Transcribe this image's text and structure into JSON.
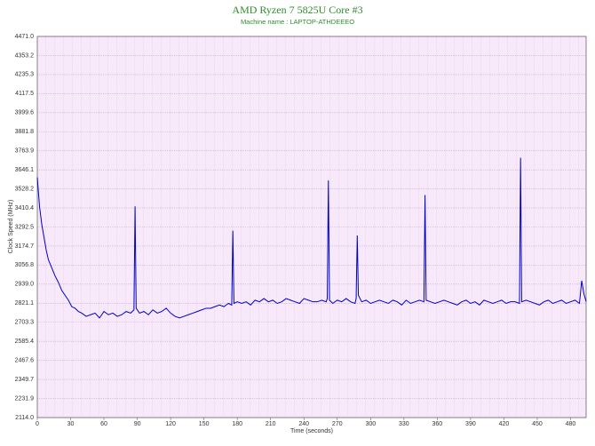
{
  "chart_data": {
    "type": "line",
    "title": "AMD Ryzen 7 5825U Core #3",
    "subtitle": "Machine name : LAPTOP-ATHDEEEO",
    "x_label": "Time (seconds)",
    "y_label": "Clock Speed (MHz)",
    "color": "#0000cc",
    "grid": true,
    "xlim": [
      0,
      494
    ],
    "xticks": [
      0,
      30,
      60,
      90,
      120,
      150,
      180,
      210,
      240,
      270,
      300,
      330,
      360,
      390,
      420,
      450,
      480
    ],
    "ylim": [
      2114,
      4471
    ],
    "yticks": [
      {
        "value": 2114,
        "label": "2114.0"
      },
      2231.9,
      2349.7,
      2467.6,
      2585.4,
      2703.3,
      2821.1,
      {
        "value": 2939,
        "label": "2939.0"
      },
      3056.8,
      3174.7,
      3292.5,
      3410.4,
      3528.2,
      3646.1,
      3763.9,
      3881.8,
      3999.6,
      4117.5,
      4235.3,
      4353.2,
      {
        "value": 4471,
        "label": "4471.0"
      }
    ],
    "x": [
      0,
      2,
      4,
      6,
      8,
      10,
      13,
      16,
      19,
      22,
      25,
      28,
      31,
      34,
      37,
      40,
      44,
      48,
      52,
      56,
      60,
      64,
      68,
      72,
      76,
      80,
      84,
      87,
      88,
      89,
      92,
      96,
      100,
      104,
      108,
      112,
      116,
      120,
      124,
      128,
      132,
      136,
      140,
      144,
      148,
      152,
      156,
      160,
      164,
      168,
      172,
      175,
      176,
      177,
      180,
      184,
      188,
      192,
      196,
      200,
      204,
      208,
      212,
      216,
      220,
      224,
      228,
      232,
      236,
      240,
      244,
      248,
      252,
      256,
      260,
      261,
      262,
      263,
      266,
      270,
      274,
      278,
      282,
      286,
      287,
      288,
      289,
      292,
      296,
      300,
      304,
      308,
      312,
      316,
      320,
      324,
      328,
      332,
      336,
      340,
      344,
      348,
      349,
      350,
      354,
      358,
      362,
      366,
      370,
      374,
      378,
      382,
      386,
      390,
      394,
      398,
      402,
      406,
      410,
      414,
      418,
      422,
      426,
      430,
      434,
      435,
      436,
      440,
      444,
      448,
      452,
      456,
      460,
      464,
      468,
      472,
      476,
      480,
      484,
      488,
      490,
      492,
      494
    ],
    "values": [
      3600,
      3420,
      3310,
      3230,
      3150,
      3090,
      3040,
      2990,
      2950,
      2900,
      2870,
      2840,
      2800,
      2790,
      2770,
      2760,
      2740,
      2750,
      2760,
      2730,
      2770,
      2750,
      2760,
      2740,
      2750,
      2770,
      2760,
      2780,
      3420,
      2790,
      2760,
      2770,
      2750,
      2780,
      2760,
      2770,
      2790,
      2760,
      2740,
      2730,
      2740,
      2750,
      2760,
      2770,
      2780,
      2790,
      2790,
      2800,
      2810,
      2800,
      2820,
      2810,
      3270,
      2820,
      2830,
      2820,
      2830,
      2810,
      2840,
      2830,
      2850,
      2830,
      2840,
      2820,
      2830,
      2850,
      2840,
      2830,
      2820,
      2850,
      2840,
      2830,
      2830,
      2840,
      2830,
      2850,
      3580,
      2840,
      2820,
      2840,
      2830,
      2850,
      2830,
      2820,
      2850,
      3240,
      2870,
      2830,
      2840,
      2820,
      2830,
      2840,
      2830,
      2820,
      2840,
      2830,
      2810,
      2840,
      2820,
      2830,
      2840,
      2830,
      3490,
      2840,
      2830,
      2820,
      2830,
      2840,
      2830,
      2820,
      2810,
      2830,
      2840,
      2820,
      2830,
      2810,
      2840,
      2830,
      2820,
      2830,
      2840,
      2820,
      2830,
      2830,
      2820,
      3720,
      2830,
      2840,
      2830,
      2820,
      2810,
      2830,
      2840,
      2820,
      2830,
      2840,
      2820,
      2830,
      2840,
      2820,
      2960,
      2880,
      2830
    ]
  }
}
